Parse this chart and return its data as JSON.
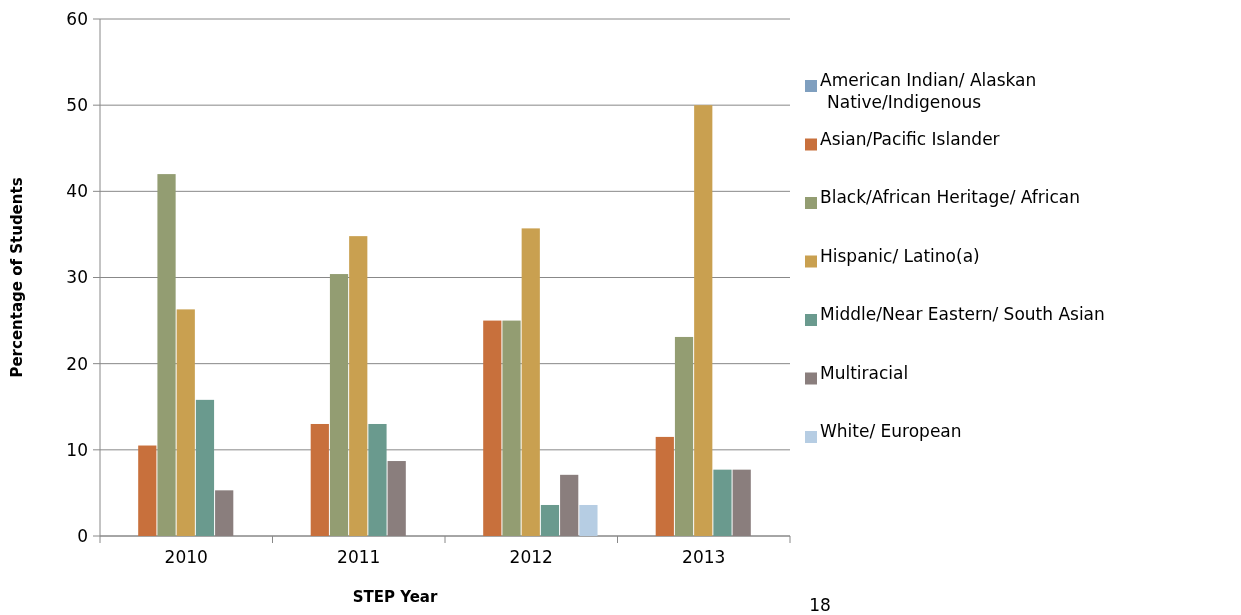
{
  "chart_data": {
    "type": "bar",
    "xlabel": "STEP Year",
    "ylabel": "Percentage of Students",
    "categories": [
      "2010",
      "2011",
      "2012",
      "2013"
    ],
    "series": [
      {
        "name": "American Indian/ Alaskan Native/Indigenous",
        "color": "#7f9fbf",
        "values": [
          0,
          0,
          0,
          0
        ]
      },
      {
        "name": "Asian/Pacific Islander",
        "color": "#c8703c",
        "values": [
          10.5,
          13,
          25,
          11.5
        ]
      },
      {
        "name": "Black/African Heritage/ African",
        "color": "#939d72",
        "values": [
          42,
          30.4,
          25,
          23.1
        ]
      },
      {
        "name": "Hispanic/ Latino(a)",
        "color": "#c9a050",
        "values": [
          26.3,
          34.8,
          35.7,
          50
        ]
      },
      {
        "name": "Middle/Near Eastern/ South Asian",
        "color": "#6a9a8e",
        "values": [
          15.8,
          13,
          3.6,
          7.7
        ]
      },
      {
        "name": "Multiracial",
        "color": "#8a7e7d",
        "values": [
          5.3,
          8.7,
          7.1,
          7.7
        ]
      },
      {
        "name": "White/ European",
        "color": "#b6cde3",
        "values": [
          0,
          0,
          3.6,
          0
        ]
      }
    ],
    "ylim": [
      0,
      60
    ],
    "yticks": [
      0,
      10,
      20,
      30,
      40,
      50,
      60
    ],
    "grid": "y",
    "legend": "right",
    "annotations": [
      "18"
    ]
  }
}
